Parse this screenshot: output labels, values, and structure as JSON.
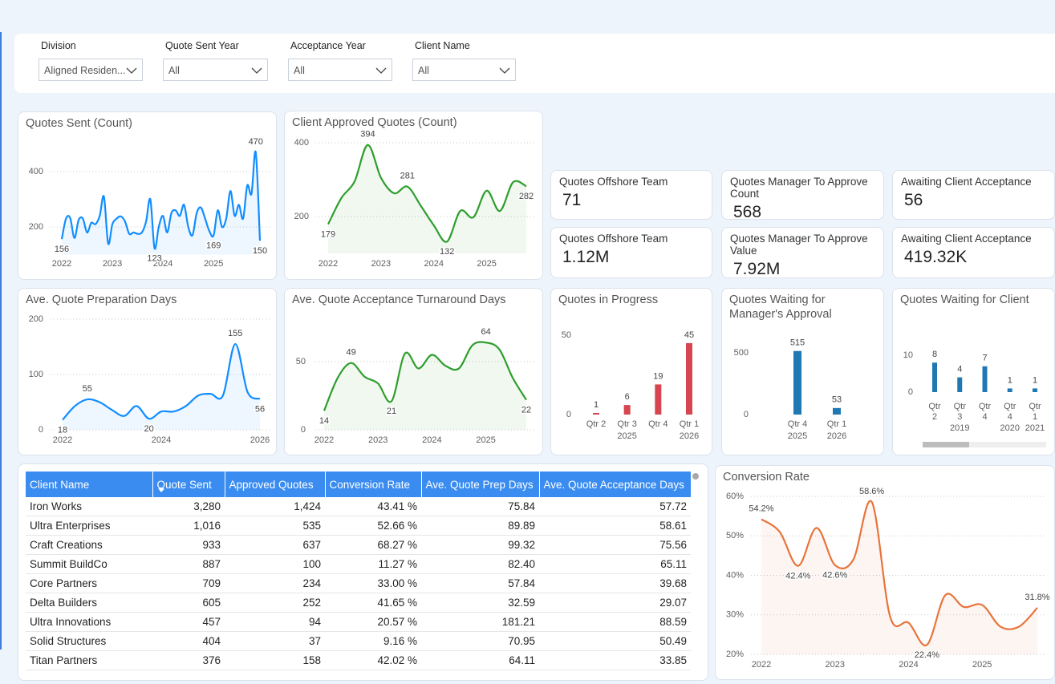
{
  "filters": [
    {
      "label": "Division",
      "value": "Aligned Residen..."
    },
    {
      "label": "Quote Sent Year",
      "value": "All"
    },
    {
      "label": "Acceptance Year",
      "value": "All"
    },
    {
      "label": "Client Name",
      "value": "All"
    }
  ],
  "cards": [
    {
      "title": "Quotes Offshore Team",
      "value": "71"
    },
    {
      "title": "Quotes Manager To Approve Count",
      "value": "568"
    },
    {
      "title": "Awaiting Client Acceptance",
      "value": "56"
    },
    {
      "title": "Quotes Offshore Team",
      "value": "1.12M"
    },
    {
      "title": "Quotes Manager To Approve Value",
      "value": "7.92M"
    },
    {
      "title": "Awaiting Client Acceptance",
      "value": "419.32K"
    }
  ],
  "chart_data": [
    {
      "type": "line",
      "title": "Quotes Sent (Count)",
      "color": "#118DFF",
      "grid": true,
      "categories": [
        "2022",
        null,
        null,
        null,
        null,
        null,
        null,
        null,
        null,
        null,
        null,
        null,
        "2023",
        null,
        null,
        null,
        null,
        null,
        null,
        null,
        null,
        null,
        null,
        null,
        "2024",
        null,
        null,
        null,
        null,
        null,
        null,
        null,
        null,
        null,
        null,
        null,
        "2025",
        null,
        null,
        null,
        null,
        null,
        null,
        null,
        null,
        null,
        null,
        null
      ],
      "values": [
        156,
        230,
        232,
        160,
        225,
        230,
        180,
        215,
        210,
        240,
        310,
        140,
        210,
        230,
        238,
        220,
        175,
        180,
        175,
        180,
        220,
        300,
        123,
        200,
        240,
        180,
        250,
        260,
        240,
        280,
        200,
        170,
        250,
        270,
        230,
        185,
        169,
        260,
        200,
        230,
        330,
        240,
        280,
        230,
        350,
        320,
        470,
        150
      ],
      "value_labels": [
        "156",
        null,
        null,
        null,
        null,
        null,
        null,
        null,
        null,
        null,
        null,
        null,
        null,
        null,
        null,
        null,
        null,
        null,
        null,
        null,
        null,
        null,
        "123",
        null,
        null,
        null,
        null,
        null,
        null,
        null,
        null,
        null,
        null,
        null,
        null,
        null,
        "169",
        null,
        null,
        null,
        null,
        null,
        null,
        null,
        null,
        null,
        "470",
        "150"
      ],
      "ylim": [
        100,
        500
      ],
      "yticks": [
        200,
        400
      ]
    },
    {
      "type": "line",
      "title": "Client Approved Quotes (Count)",
      "color": "#2E9E2E",
      "grid": true,
      "categories": [
        "2022",
        null,
        null,
        null,
        "2023",
        null,
        null,
        null,
        "2024",
        null,
        null,
        null,
        "2025",
        null,
        null,
        null
      ],
      "values": [
        179,
        250,
        295,
        394,
        305,
        263,
        281,
        230,
        176,
        132,
        215,
        198,
        270,
        215,
        293,
        282
      ],
      "value_labels": [
        "179",
        null,
        null,
        "394",
        null,
        null,
        "281",
        null,
        null,
        "132",
        null,
        null,
        null,
        null,
        null,
        "282"
      ],
      "ylim": [
        100,
        420
      ],
      "yticks": [
        200,
        400
      ]
    },
    {
      "type": "line",
      "title": "Ave. Quote Preparation Days",
      "color": "#118DFF",
      "grid": true,
      "categories": [
        "2022",
        null,
        null,
        null,
        null,
        null,
        null,
        null,
        "2024",
        null,
        null,
        null,
        null,
        null,
        null,
        null,
        "2026"
      ],
      "values": [
        18,
        43,
        55,
        50,
        36,
        25,
        43,
        20,
        33,
        33,
        43,
        62,
        65,
        62,
        155,
        68,
        56
      ],
      "value_labels": [
        "18",
        null,
        "55",
        null,
        null,
        null,
        null,
        "20",
        null,
        null,
        null,
        null,
        null,
        null,
        "155",
        null,
        "56"
      ],
      "ylim": [
        0,
        200
      ],
      "yticks": [
        0,
        100,
        200
      ]
    },
    {
      "type": "line",
      "title": "Ave. Quote Acceptance Turnaround Days",
      "color": "#2E9E2E",
      "grid": true,
      "categories": [
        "2022",
        null,
        null,
        null,
        "2023",
        null,
        null,
        null,
        "2024",
        null,
        null,
        null,
        "2025",
        null,
        null,
        null
      ],
      "values": [
        14,
        38,
        49,
        39,
        34,
        21,
        56,
        45,
        55,
        47,
        45,
        62,
        64,
        59,
        38,
        22
      ],
      "value_labels": [
        "14",
        null,
        "49",
        null,
        null,
        "21",
        null,
        null,
        null,
        null,
        null,
        null,
        "64",
        null,
        null,
        "22"
      ],
      "ylim": [
        0,
        80
      ],
      "yticks": [
        0,
        50
      ]
    },
    {
      "type": "bar",
      "title": "Quotes in Progress",
      "color": "#D64550",
      "grid": false,
      "categories": [
        "Qtr 2",
        "Qtr 3",
        "Qtr 4",
        "Qtr 1"
      ],
      "category_groups": [
        {
          "label": "2025",
          "count": 3
        },
        {
          "label": "2026",
          "count": 1
        }
      ],
      "values": [
        1,
        6,
        19,
        45
      ],
      "ylim": [
        0,
        55
      ],
      "yticks": [
        0,
        50
      ]
    },
    {
      "type": "bar",
      "title": "Quotes Waiting for Manager's Approval",
      "color": "#1F78B4",
      "grid": false,
      "categories": [
        "Qtr 4",
        "Qtr 1"
      ],
      "category_groups": [
        {
          "label": "2025",
          "count": 1
        },
        {
          "label": "2026",
          "count": 1
        }
      ],
      "values": [
        515,
        53
      ],
      "ylim": [
        0,
        600
      ],
      "yticks": [
        0,
        500
      ]
    },
    {
      "type": "bar",
      "title": "Quotes Waiting for Client",
      "color": "#1F78B4",
      "grid": false,
      "categories": [
        "Qtr 2",
        "Qtr 3",
        "Qtr 4",
        "Qtr 4",
        "Qtr 1"
      ],
      "category_groups": [
        {
          "label": "2019",
          "count": 3
        },
        {
          "label": "2020",
          "count": 1
        },
        {
          "label": "2021",
          "count": 1
        }
      ],
      "values": [
        8,
        4,
        7,
        1,
        1
      ],
      "ylim": [
        0,
        12
      ],
      "yticks": [
        0,
        10
      ]
    },
    {
      "type": "line",
      "title": "Conversion Rate",
      "color": "#E8743B",
      "grid": true,
      "categories": [
        "2022",
        null,
        null,
        null,
        "2023",
        null,
        null,
        null,
        "2024",
        null,
        null,
        null,
        "2025",
        null,
        null,
        null
      ],
      "values": [
        54.2,
        51,
        42.4,
        52,
        42.6,
        44,
        58.6,
        29.5,
        28,
        22.4,
        35,
        32,
        32.5,
        27,
        27,
        31.8
      ],
      "value_labels": [
        "54.2%",
        null,
        "42.4%",
        null,
        "42.6%",
        null,
        "58.6%",
        null,
        null,
        "22.4%",
        null,
        null,
        null,
        null,
        null,
        "31.8%"
      ],
      "ylim": [
        20,
        60
      ],
      "yticks": [
        {
          "value": 20,
          "label": "20%"
        },
        {
          "value": 30,
          "label": "30%"
        },
        {
          "value": 40,
          "label": "40%"
        },
        {
          "value": 50,
          "label": "50%"
        },
        {
          "value": 60,
          "label": "60%"
        }
      ]
    }
  ],
  "table": {
    "columns": [
      "Client Name",
      "Quote Sent",
      "Approved Quotes",
      "Conversion Rate",
      "Ave. Quote Prep Days",
      "Ave. Quote Acceptance Days"
    ],
    "rows": [
      [
        "Iron Works",
        "3,280",
        "1,424",
        "43.41 %",
        "75.84",
        "57.72"
      ],
      [
        "Ultra Enterprises",
        "1,016",
        "535",
        "52.66 %",
        "89.89",
        "58.61"
      ],
      [
        "Craft Creations",
        "933",
        "637",
        "68.27 %",
        "99.32",
        "75.56"
      ],
      [
        "Summit BuildCo",
        "887",
        "100",
        "11.27 %",
        "82.40",
        "65.11"
      ],
      [
        "Core Partners",
        "709",
        "234",
        "33.00 %",
        "57.84",
        "39.68"
      ],
      [
        "Delta Builders",
        "605",
        "252",
        "41.65 %",
        "32.59",
        "29.07"
      ],
      [
        "Ultra Innovations",
        "457",
        "94",
        "20.57 %",
        "181.21",
        "88.59"
      ],
      [
        "Solid Structures",
        "404",
        "37",
        "9.16 %",
        "70.95",
        "50.49"
      ],
      [
        "Titan Partners",
        "376",
        "158",
        "42.02 %",
        "64.11",
        "33.85"
      ]
    ]
  }
}
